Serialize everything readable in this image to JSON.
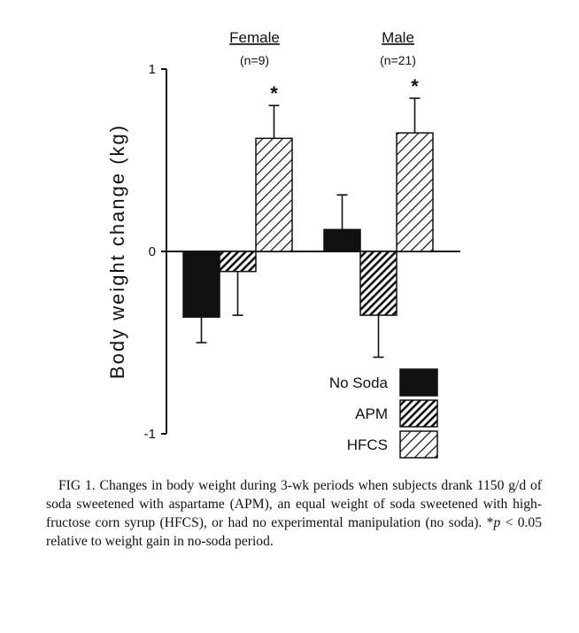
{
  "chart_data": {
    "type": "bar",
    "ylabel": "Body weight change (kg)",
    "ylim": [
      -1,
      1
    ],
    "yticks": [
      -1,
      0,
      1
    ],
    "ytick_labels": [
      "-1",
      "0",
      "1"
    ],
    "groups": [
      {
        "name": "Female",
        "n_label": "(n=9)"
      },
      {
        "name": "Male",
        "n_label": "(n=21)"
      }
    ],
    "series": [
      {
        "name": "No Soda",
        "values": [
          -0.36,
          0.12
        ],
        "error": [
          0.14,
          0.19
        ],
        "significant": [
          false,
          false
        ]
      },
      {
        "name": "APM",
        "values": [
          -0.11,
          -0.35
        ],
        "error": [
          0.24,
          0.23
        ],
        "significant": [
          false,
          false
        ]
      },
      {
        "name": "HFCS",
        "values": [
          0.62,
          0.65
        ],
        "error": [
          0.18,
          0.19
        ],
        "significant": [
          true,
          true
        ]
      }
    ],
    "significance_marker": "*",
    "legend": {
      "position": "bottom-right",
      "entries": [
        "No Soda",
        "APM",
        "HFCS"
      ]
    }
  },
  "caption": {
    "label": "FIG 1.",
    "text": "Changes in body weight during 3-wk periods when subjects drank 1150 g/d of soda sweetened with aspartame (APM), an equal weight of soda sweetened with high-fructose corn syrup (HFCS), or had no experimental manipulation (no soda).",
    "note_marker": "*",
    "note_p": "p",
    "note_text": " < 0.05 relative to weight gain in no-soda period."
  }
}
